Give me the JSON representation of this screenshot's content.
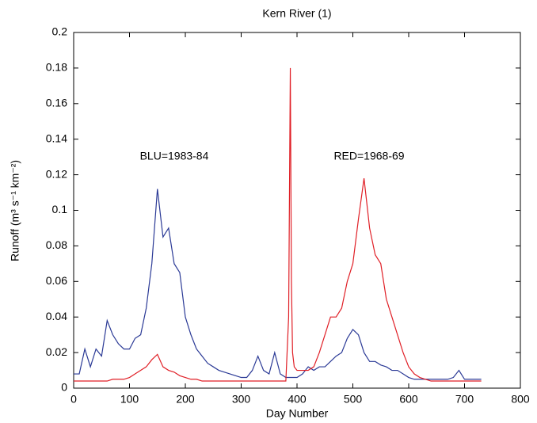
{
  "chart_data": {
    "type": "line",
    "title": "Kern River (1)",
    "x_label": "Day Number",
    "y_label": "Runoff (m³ s⁻¹ km⁻²)",
    "annotations": [
      "BLU=1983-84",
      "RED=1968-69"
    ],
    "xlim": [
      0,
      800
    ],
    "xticks": [
      0,
      100,
      200,
      300,
      400,
      500,
      600,
      700,
      800
    ],
    "ylim": [
      0,
      0.2
    ],
    "yticks": [
      0,
      0.02,
      0.04,
      0.06,
      0.08,
      0.1,
      0.12,
      0.14,
      0.16,
      0.18,
      0.2
    ],
    "x": [
      0,
      10,
      20,
      30,
      40,
      50,
      60,
      70,
      80,
      90,
      100,
      110,
      120,
      130,
      140,
      150,
      160,
      170,
      180,
      190,
      200,
      210,
      220,
      230,
      240,
      250,
      260,
      270,
      280,
      290,
      300,
      310,
      320,
      330,
      340,
      350,
      360,
      370,
      380,
      385,
      388,
      390,
      392,
      395,
      400,
      410,
      420,
      430,
      440,
      450,
      460,
      470,
      480,
      490,
      500,
      510,
      520,
      530,
      540,
      550,
      560,
      570,
      580,
      590,
      600,
      610,
      620,
      630,
      640,
      650,
      660,
      670,
      680,
      690,
      700,
      710,
      720,
      730
    ],
    "series": [
      {
        "color": "#2b3a96",
        "values": [
          0.008,
          0.008,
          0.022,
          0.012,
          0.022,
          0.018,
          0.038,
          0.03,
          0.025,
          0.022,
          0.022,
          0.028,
          0.03,
          0.045,
          0.07,
          0.112,
          0.085,
          0.09,
          0.07,
          0.065,
          0.04,
          0.03,
          0.022,
          0.018,
          0.014,
          0.012,
          0.01,
          0.009,
          0.008,
          0.007,
          0.006,
          0.006,
          0.01,
          0.018,
          0.01,
          0.008,
          0.02,
          0.008,
          0.006,
          0.006,
          0.006,
          0.006,
          0.006,
          0.006,
          0.006,
          0.008,
          0.012,
          0.01,
          0.012,
          0.012,
          0.015,
          0.018,
          0.02,
          0.028,
          0.033,
          0.03,
          0.02,
          0.015,
          0.015,
          0.013,
          0.012,
          0.01,
          0.01,
          0.008,
          0.006,
          0.005,
          0.005,
          0.005,
          0.005,
          0.005,
          0.005,
          0.005,
          0.006,
          0.01,
          0.005,
          0.005,
          0.005,
          0.005
        ]
      },
      {
        "color": "#e01f26",
        "values": [
          0.004,
          0.004,
          0.004,
          0.004,
          0.004,
          0.004,
          0.004,
          0.005,
          0.005,
          0.005,
          0.006,
          0.008,
          0.01,
          0.012,
          0.016,
          0.019,
          0.012,
          0.01,
          0.009,
          0.007,
          0.006,
          0.005,
          0.005,
          0.004,
          0.004,
          0.004,
          0.004,
          0.004,
          0.004,
          0.004,
          0.004,
          0.004,
          0.004,
          0.004,
          0.004,
          0.004,
          0.004,
          0.004,
          0.004,
          0.04,
          0.18,
          0.06,
          0.02,
          0.012,
          0.01,
          0.01,
          0.01,
          0.012,
          0.02,
          0.03,
          0.04,
          0.04,
          0.045,
          0.06,
          0.07,
          0.095,
          0.118,
          0.09,
          0.075,
          0.07,
          0.05,
          0.04,
          0.03,
          0.02,
          0.012,
          0.008,
          0.006,
          0.005,
          0.004,
          0.004,
          0.004,
          0.004,
          0.004,
          0.004,
          0.004,
          0.004,
          0.004,
          0.004
        ]
      }
    ]
  }
}
